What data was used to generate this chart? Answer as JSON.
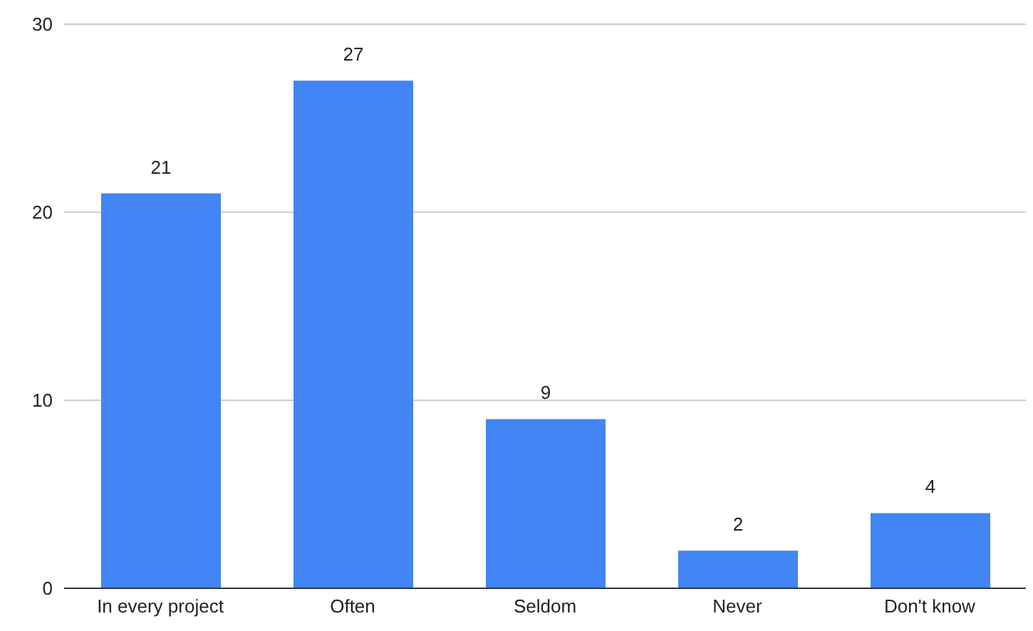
{
  "chart_data": {
    "type": "bar",
    "categories": [
      "In every project",
      "Often",
      "Seldom",
      "Never",
      "Don't know"
    ],
    "values": [
      21,
      27,
      9,
      2,
      4
    ],
    "color": "#4285f4",
    "ylim": [
      0,
      30
    ],
    "yticks": [
      0,
      10,
      20,
      30
    ],
    "grid": "y",
    "data_labels": true
  }
}
